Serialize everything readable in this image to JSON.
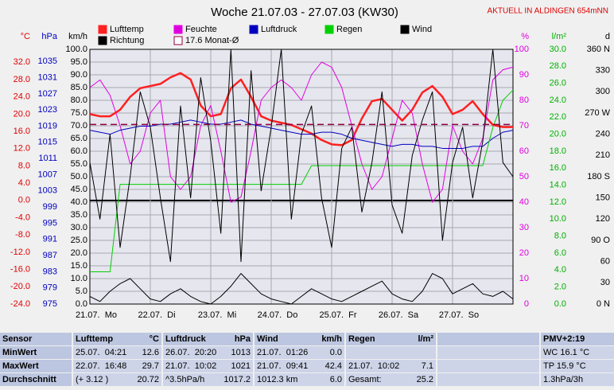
{
  "chart_data": {
    "type": "line",
    "title": "Woche 21.07.03 - 27.07.03 (KW30)",
    "station": "AKTUELL IN ALDINGEN 654mNN",
    "xlim": [
      0,
      168
    ],
    "xticks": [
      {
        "value": 0,
        "label": "21.07.  Mo"
      },
      {
        "value": 24,
        "label": "22.07.  Di"
      },
      {
        "value": 48,
        "label": "23.07.  Mi"
      },
      {
        "value": 72,
        "label": "24.07.  Do"
      },
      {
        "value": 96,
        "label": "25.07.  Fr"
      },
      {
        "value": 120,
        "label": "26.07.  Sa"
      },
      {
        "value": 144,
        "label": "27.07.  So"
      }
    ],
    "grid": true,
    "axes": [
      {
        "id": "temp",
        "label": "°C",
        "color": "#e00000",
        "side": "left",
        "lim": [
          -24,
          35
        ],
        "ticks": [
          {
            "value": 32,
            "label": "32.0"
          },
          {
            "value": 28,
            "label": "28.0"
          },
          {
            "value": 24,
            "label": "24.0"
          },
          {
            "value": 20,
            "label": "20.0"
          },
          {
            "value": 16,
            "label": "16.0"
          },
          {
            "value": 12,
            "label": "12.0"
          },
          {
            "value": 8,
            "label": "8.0"
          },
          {
            "value": 4,
            "label": "4.0"
          },
          {
            "value": 0,
            "label": "0.0"
          },
          {
            "value": -4,
            "label": "-4.0"
          },
          {
            "value": -8,
            "label": "-8.0"
          },
          {
            "value": -12,
            "label": "-12.0"
          },
          {
            "value": -16,
            "label": "-16.0"
          },
          {
            "value": -20,
            "label": "-20.0"
          },
          {
            "value": -24,
            "label": "-24.0"
          }
        ]
      },
      {
        "id": "hpa",
        "label": "hPa",
        "color": "#0000c0",
        "side": "left",
        "lim": [
          975,
          1038
        ],
        "ticks": [
          1035,
          1031,
          1027,
          1023,
          1019,
          1015,
          1011,
          1007,
          1003,
          999,
          995,
          991,
          987,
          983,
          979,
          975
        ]
      },
      {
        "id": "kmh",
        "label": "km/h",
        "color": "#000000",
        "side": "left",
        "lim": [
          0,
          100
        ],
        "ticks": [
          {
            "value": 100,
            "label": "100.0"
          },
          {
            "value": 95,
            "label": "95.0"
          },
          {
            "value": 90,
            "label": "90.0"
          },
          {
            "value": 85,
            "label": "85.0"
          },
          {
            "value": 80,
            "label": "80.0"
          },
          {
            "value": 75,
            "label": "75.0"
          },
          {
            "value": 70,
            "label": "70.0"
          },
          {
            "value": 65,
            "label": "65.0"
          },
          {
            "value": 60,
            "label": "60.0"
          },
          {
            "value": 55,
            "label": "55.0"
          },
          {
            "value": 50,
            "label": "50.0"
          },
          {
            "value": 45,
            "label": "45.0"
          },
          {
            "value": 40,
            "label": "40.0"
          },
          {
            "value": 35,
            "label": "35.0"
          },
          {
            "value": 30,
            "label": "30.0"
          },
          {
            "value": 25,
            "label": "25.0"
          },
          {
            "value": 20,
            "label": "20.0"
          },
          {
            "value": 15,
            "label": "15.0"
          },
          {
            "value": 10,
            "label": "10.0"
          },
          {
            "value": 5,
            "label": "5.0"
          },
          {
            "value": 0,
            "label": "0.0"
          }
        ],
        "grid": true
      },
      {
        "id": "pct",
        "label": "%",
        "color": "#e000e0",
        "side": "right",
        "lim": [
          0,
          100
        ],
        "ticks": [
          100,
          90,
          80,
          70,
          60,
          50,
          40,
          30,
          20,
          10,
          0
        ]
      },
      {
        "id": "rain",
        "label": "l/m²",
        "color": "#00b000",
        "side": "right",
        "lim": [
          0,
          30
        ],
        "ticks": [
          {
            "value": 30,
            "label": "30.0"
          },
          {
            "value": 28,
            "label": "28.0"
          },
          {
            "value": 26,
            "label": "26.0"
          },
          {
            "value": 24,
            "label": "24.0"
          },
          {
            "value": 22,
            "label": "22.0"
          },
          {
            "value": 20,
            "label": "20.0"
          },
          {
            "value": 18,
            "label": "18.0"
          },
          {
            "value": 16,
            "label": "16.0"
          },
          {
            "value": 14,
            "label": "14.0"
          },
          {
            "value": 12,
            "label": "12.0"
          },
          {
            "value": 10,
            "label": "10.0"
          },
          {
            "value": 8,
            "label": "8.0"
          },
          {
            "value": 6,
            "label": "6.0"
          },
          {
            "value": 4,
            "label": "4.0"
          },
          {
            "value": 2,
            "label": "2.0"
          },
          {
            "value": 0,
            "label": "0.0"
          }
        ]
      },
      {
        "id": "dir",
        "label": "d",
        "color": "#000000",
        "side": "right",
        "lim": [
          0,
          360
        ],
        "ticks": [
          {
            "value": 360,
            "label": "360 N"
          },
          330,
          300,
          {
            "value": 270,
            "label": "270 W"
          },
          240,
          210,
          {
            "value": 180,
            "label": "180 S"
          },
          150,
          120,
          {
            "value": 90,
            "label": "90 O"
          },
          60,
          30,
          {
            "value": 0,
            "label": "0 N"
          }
        ]
      }
    ],
    "x": [
      0,
      4,
      8,
      12,
      16,
      20,
      24,
      28,
      32,
      36,
      40,
      44,
      48,
      52,
      56,
      60,
      64,
      68,
      72,
      76,
      80,
      84,
      88,
      92,
      96,
      100,
      104,
      108,
      112,
      116,
      120,
      124,
      128,
      132,
      136,
      140,
      144,
      148,
      152,
      156,
      160,
      164,
      168
    ],
    "series": [
      {
        "name": "Lufttemp",
        "color": "#ff2020",
        "axis": "temp",
        "width": 2.5,
        "values": [
          20,
          19.5,
          19.5,
          21,
          24,
          26,
          26.5,
          27,
          28.5,
          29.5,
          28,
          22,
          19.5,
          20,
          26,
          28,
          24,
          19.5,
          18.5,
          18,
          17.5,
          16.5,
          15.5,
          14,
          13,
          12.8,
          14,
          19,
          23,
          23.5,
          21,
          18.5,
          21,
          25,
          26.5,
          24,
          20,
          21,
          23,
          20,
          17.5,
          17,
          17
        ]
      },
      {
        "name": "Feuchte",
        "color": "#e000e0",
        "axis": "pct",
        "width": 1,
        "values": [
          85,
          88,
          82,
          70,
          55,
          60,
          75,
          80,
          50,
          45,
          50,
          70,
          78,
          60,
          40,
          42,
          60,
          80,
          85,
          88,
          85,
          80,
          90,
          95,
          93,
          85,
          70,
          55,
          45,
          50,
          65,
          80,
          75,
          55,
          40,
          45,
          70,
          60,
          55,
          65,
          88,
          92,
          93
        ]
      },
      {
        "name": "Luftdruck",
        "color": "#0000c0",
        "axis": "hpa",
        "width": 1,
        "values": [
          1018,
          1017.5,
          1017,
          1018,
          1018.5,
          1019,
          1019,
          1019.5,
          1019.5,
          1020,
          1020.5,
          1020,
          1019.5,
          1019.5,
          1020,
          1020.5,
          1019.5,
          1019,
          1018.5,
          1018,
          1017.5,
          1017,
          1017,
          1017.5,
          1017.5,
          1017,
          1016,
          1015.5,
          1015,
          1014.5,
          1014,
          1014.5,
          1014.5,
          1014,
          1014,
          1013.5,
          1013.5,
          1013.5,
          1014,
          1014,
          1016,
          1017.5,
          1018
        ]
      },
      {
        "name": "Regen",
        "color": "#00d000",
        "axis": "rain",
        "width": 1,
        "values": [
          3.8,
          3.8,
          3.8,
          14.1,
          14.1,
          14.1,
          14.1,
          14.1,
          14.1,
          14.1,
          14.1,
          14.1,
          14.1,
          14.1,
          14.1,
          14.1,
          14.1,
          14.1,
          14.1,
          14.1,
          14.1,
          14.1,
          16.3,
          16.3,
          16.3,
          16.3,
          16.3,
          16.3,
          16.3,
          16.3,
          16.3,
          16.3,
          16.3,
          16.3,
          16.3,
          16.3,
          16.3,
          16.3,
          16.3,
          16.3,
          20.8,
          24,
          25.2
        ]
      },
      {
        "name": "Wind",
        "color": "#000000",
        "axis": "kmh",
        "width": 1,
        "values": [
          3,
          1,
          5,
          8,
          10,
          6,
          2,
          1,
          4,
          6,
          3,
          1,
          0,
          3,
          7,
          12,
          8,
          4,
          2,
          1,
          0,
          3,
          6,
          4,
          2,
          1,
          3,
          5,
          7,
          9,
          4,
          2,
          1,
          5,
          12,
          10,
          4,
          6,
          8,
          4,
          3,
          5,
          2
        ]
      },
      {
        "name": "Richtung",
        "color": "#000000",
        "axis": "dir",
        "width": 1,
        "values": [
          200,
          120,
          240,
          80,
          180,
          300,
          250,
          150,
          60,
          280,
          150,
          320,
          230,
          100,
          360,
          60,
          330,
          160,
          250,
          360,
          120,
          240,
          280,
          150,
          80,
          220,
          250,
          130,
          200,
          300,
          140,
          100,
          210,
          260,
          300,
          90,
          200,
          250,
          150,
          230,
          360,
          200,
          180
        ]
      },
      {
        "name": "17.6 Monat-Ø",
        "color": "#900040",
        "axis": "temp",
        "dashed": true,
        "value": 17.6
      }
    ]
  },
  "table": {
    "header": [
      "Sensor",
      "Lufttemp",
      "°C",
      "Luftdruck",
      "hPa",
      "Wind",
      "km/h",
      "Regen",
      "l/m²",
      "PMV+2:19"
    ],
    "rows": [
      [
        "MinWert",
        "25.07.  04:21",
        "12.6",
        "26.07.  20:20",
        "1013",
        "21.07.  01:26",
        "0.0",
        null,
        null,
        "WC 16.1 °C"
      ],
      [
        "MaxWert",
        "22.07.  16:48",
        "29.7",
        "21.07.  10:02",
        "1021",
        "21.07.  09:41",
        "42.4",
        "21.07.  10:02",
        "7.1",
        "TP 15.9 °C"
      ],
      [
        "Durchschnitt",
        "(+ 3.12 )",
        "20.72",
        "^3.5hPa/h",
        "1017.2",
        "1012.3 km",
        "6.0",
        "Gesamt:",
        "25.2",
        "1.3hPa/3h"
      ]
    ]
  }
}
